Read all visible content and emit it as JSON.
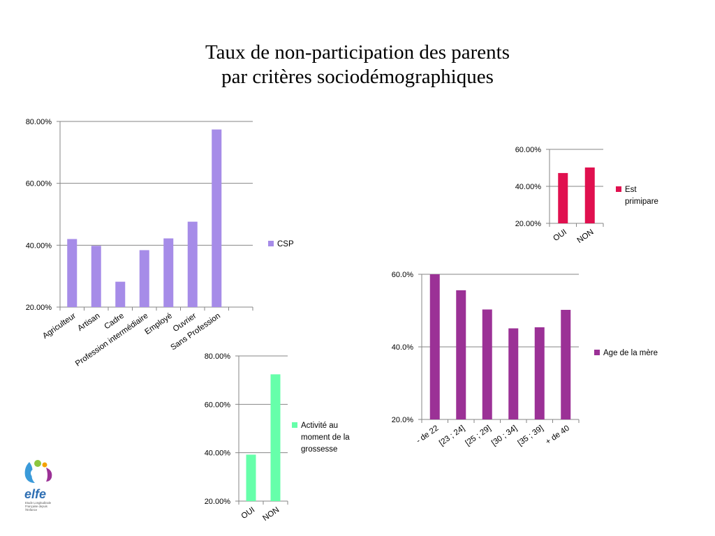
{
  "title": {
    "line1": "Taux de non-participation des parents",
    "line2": "par critères sociodémographiques"
  },
  "colors": {
    "csp": "#a68ce8",
    "primipare": "#e0104f",
    "activite": "#66ffaa",
    "age": "#9b3196"
  },
  "chart_data": [
    {
      "id": "csp",
      "type": "bar",
      "categories": [
        "Agriculteur",
        "Artisan",
        "Cadre",
        "Profession intermédiaire",
        "Employé",
        "Ouvrier",
        "Sans Profession"
      ],
      "series": [
        {
          "name": "CSP",
          "values": [
            42.0,
            39.8,
            28.2,
            38.4,
            42.2,
            47.6,
            77.4
          ]
        }
      ],
      "ylim": [
        20,
        80
      ],
      "yticks": [
        "20.00%",
        "40.00%",
        "60.00%",
        "80.00%"
      ],
      "legend": [
        "CSP"
      ],
      "legend_position": "right",
      "grid": true
    },
    {
      "id": "primipare",
      "type": "bar",
      "categories": [
        "OUI",
        "NON"
      ],
      "series": [
        {
          "name": "Est primipare",
          "values": [
            47.2,
            50.2
          ]
        }
      ],
      "ylim": [
        20,
        60
      ],
      "yticks": [
        "20.00%",
        "40.00%",
        "60.00%"
      ],
      "legend": [
        "Est",
        "primipare"
      ],
      "legend_position": "right",
      "grid": true
    },
    {
      "id": "activite",
      "type": "bar",
      "categories": [
        "OUI",
        "NON"
      ],
      "series": [
        {
          "name": "Activité au moment de la grossesse",
          "values": [
            39.2,
            72.4
          ]
        }
      ],
      "ylim": [
        20,
        80
      ],
      "yticks": [
        "20.00%",
        "40.00%",
        "60.00%",
        "80.00%"
      ],
      "legend": [
        "Activité au",
        "moment de la",
        "grossesse"
      ],
      "legend_position": "right",
      "grid": true
    },
    {
      "id": "age",
      "type": "bar",
      "categories": [
        "- de 22",
        "[23 ; 24]",
        "[25 ; 29]",
        "[30 ; 34]",
        "[35 ; 39]",
        "+ de 40"
      ],
      "series": [
        {
          "name": "Age de la mère",
          "values": [
            60.0,
            55.6,
            50.3,
            45.1,
            45.4,
            50.2
          ]
        }
      ],
      "ylim": [
        20,
        60
      ],
      "yticks": [
        "20.0%",
        "40.0%",
        "60.0%"
      ],
      "legend": [
        "Age de la mère"
      ],
      "legend_position": "right",
      "grid": true
    }
  ],
  "logo": {
    "name": "elfe",
    "lines": [
      "Etude Longitudinale",
      "Française depuis",
      "l'Enfance"
    ]
  }
}
